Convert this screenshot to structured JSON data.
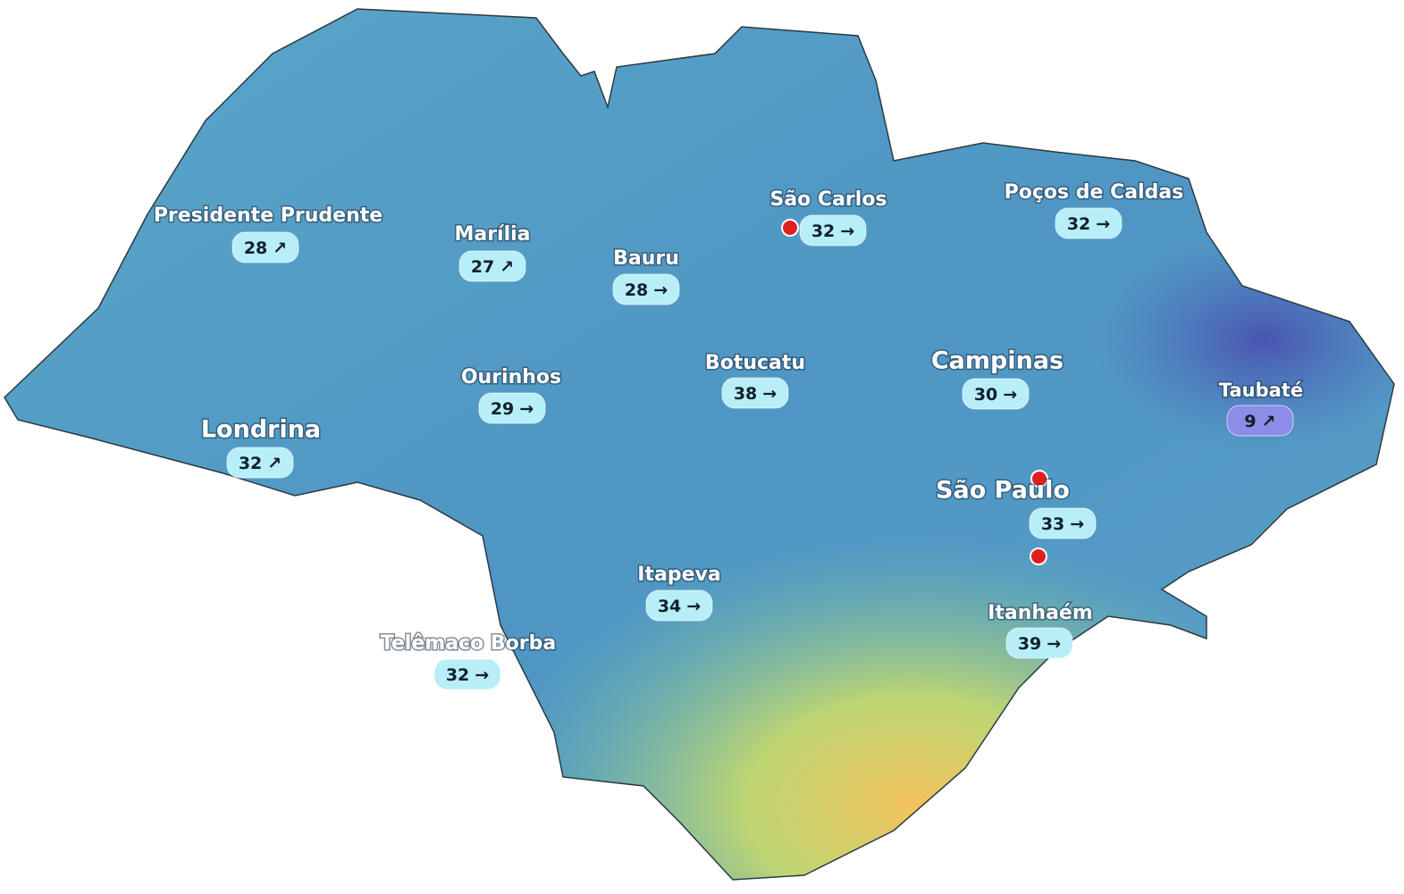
{
  "cities": [
    {
      "name": "Presidente Prudente",
      "value": 28,
      "arrow": "↗"
    },
    {
      "name": "Marília",
      "value": 27,
      "arrow": "↗"
    },
    {
      "name": "Bauru",
      "value": 28,
      "arrow": "→"
    },
    {
      "name": "São Carlos",
      "value": 32,
      "arrow": "→"
    },
    {
      "name": "Poços de Caldas",
      "value": 32,
      "arrow": "→"
    },
    {
      "name": "Ourinhos",
      "value": 29,
      "arrow": "→"
    },
    {
      "name": "Botucatu",
      "value": 38,
      "arrow": "→"
    },
    {
      "name": "Campinas",
      "value": 30,
      "arrow": "→"
    },
    {
      "name": "Taubaté",
      "value": 9,
      "arrow": "↗"
    },
    {
      "name": "Londrina",
      "value": 32,
      "arrow": "↗"
    },
    {
      "name": "São Paulo",
      "value": 33,
      "arrow": "→"
    },
    {
      "name": "Itapeva",
      "value": 34,
      "arrow": "→"
    },
    {
      "name": "Itanhaém",
      "value": 39,
      "arrow": "→"
    },
    {
      "name": "Telêmaco Borba",
      "value": 32,
      "arrow": "→"
    }
  ]
}
